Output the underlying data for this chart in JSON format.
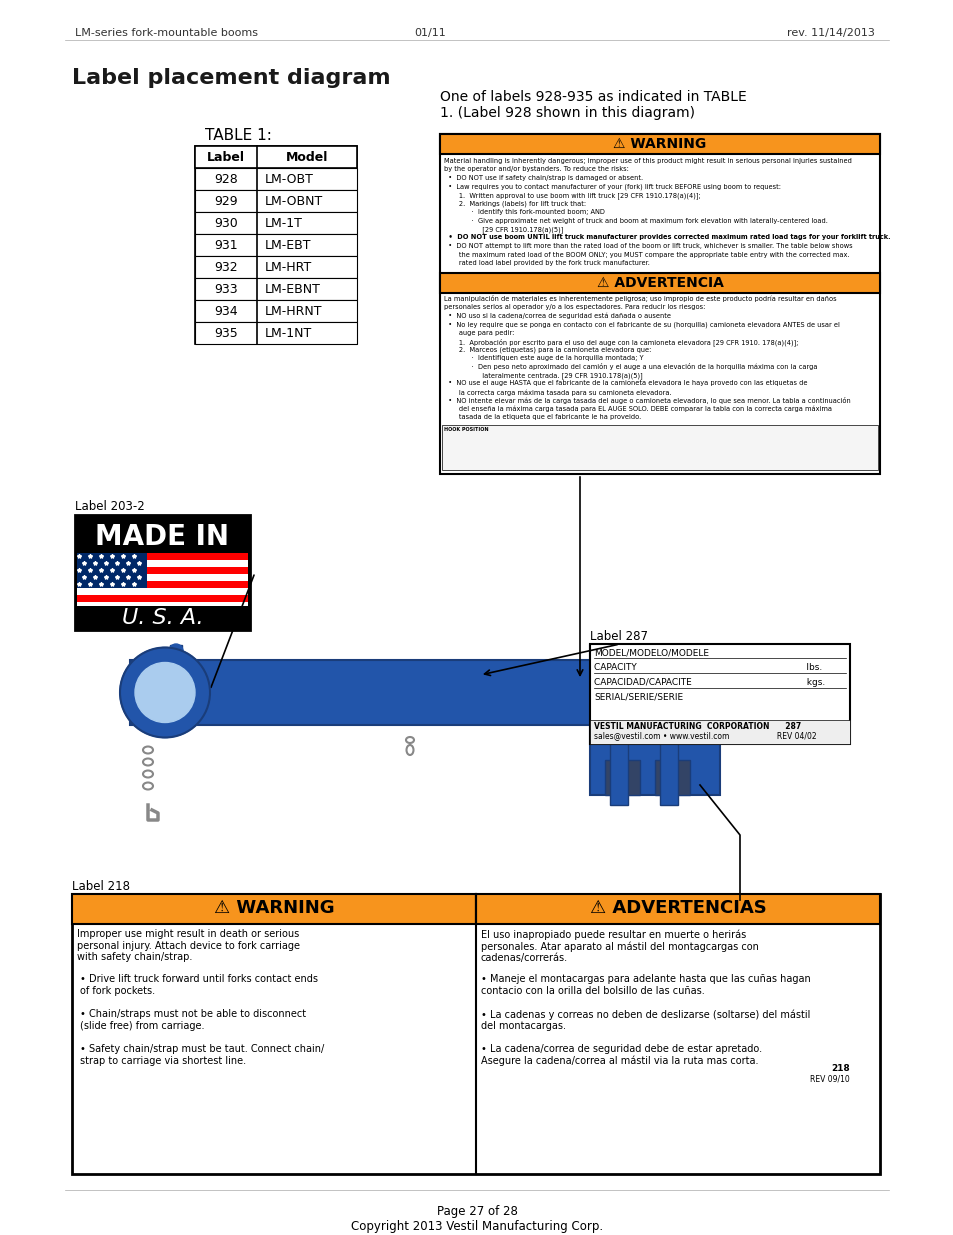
{
  "page_title": "Label placement diagram",
  "header_left": "LM-series fork-mountable booms",
  "header_center": "01/11",
  "header_right": "rev. 11/14/2013",
  "footer_line1": "Page 27 of 28",
  "footer_line2": "Copyright 2013 Vestil Manufacturing Corp.",
  "table1_title": "TABLE 1:",
  "table1_headers": [
    "Label",
    "Model"
  ],
  "table1_rows": [
    [
      "928",
      "LM-OBT"
    ],
    [
      "929",
      "LM-OBNT"
    ],
    [
      "930",
      "LM-1T"
    ],
    [
      "931",
      "LM-EBT"
    ],
    [
      "932",
      "LM-HRT"
    ],
    [
      "933",
      "LM-EBNT"
    ],
    [
      "934",
      "LM-HRNT"
    ],
    [
      "935",
      "LM-1NT"
    ]
  ],
  "callout_text": "One of labels 928-935 as indicated in TABLE\n1. (Label 928 shown in this diagram)",
  "warning_title": "WARNING",
  "warning_text1": "Material handling is inherently dangerous; improper use of this product might result in serious personal injuries sustained\nby the operator and/or bystanders. To reduce the risks:\n  •  DO NOT use if safety chain/strap is damaged or absent.\n  •  Law requires you to contact manufacturer of your (fork) lift truck BEFORE using boom to request:\n       1.  Written approval to use boom with lift truck [29 CFR 1910.178(a)(4)];\n       2.  Markings (labels) for lift truck that:\n             ·  Identify this fork-mounted boom; AND\n             ·  Give approximate net weight of truck and boom at maximum fork elevation with laterally-centered load.\n                  [29 CFR 1910.178(a)(5)]\n  •  DO NOT use boom UNTIL lift truck manufacturer provides corrected maximum rated load tags for your forklift truck.\n  •  DO NOT attempt to lift more than the rated load of the boom or lift truck, whichever is smaller. The table below shows\n       the maximum rated load of the BOOM ONLY; you MUST compare the appropriate table entry with the corrected max.\n       rated load label provided by the fork truck manufacturer.",
  "advertencia_title": "ADVERTENCIA",
  "advertencia_text": "La manipulación de materiales es inherentemente peligrosa; uso impropio de este producto podría resultar en daños\npersonales serios al operador y/o a los espectadores. Para reducir los riesgos:\n  •  NO uso si la cadena/correa de seguridad está dañada o ausente\n  •  No ley require que se ponga en contacto con el fabricante de su (horquilla) camioneta elevadora ANTES de usar el\n       auge para pedir:\n       1.  Aprobación por escrito para el uso del auge con la camioneta elevadora [29 CFR 1910. 178(a)(4)];\n       2.  Marceos (etiquetas) para la camioneta elevadora que:\n             ·  Identifiquen este auge de la horquilla montada; Y\n             ·  Den peso neto aproximado del camión y el auge a una elevación de la horquilla máxima con la carga\n                  lateralmente centrada. [29 CFR 1910.178(a)(5)]\n  •  NO use el auge HASTA que el fabricante de la camioneta elevadora le haya provedo con las etiquetas de\n       la correcta carga máxima tasada para su camioneta elevadora.\n  •  NO intente elevar más de la carga tasada del auge o camioneta elevadora, lo que sea menor. La tabla a continuación\n       del enseña la máxima carga tasada para EL AUGE SOLO. DEBE comparar la tabla con la correcta carga máxima\n       tasada de la etiqueta que el fabricante le ha proveido.",
  "label203_title": "Label 203-2",
  "made_in_text": "MADE IN",
  "usa_text": "U. S. A.",
  "label287_title": "Label 287",
  "label287_rows": [
    "MODEL/MODELO/MODELE",
    "CAPACITY                                                           lbs.",
    "CAPACIDAD/CAPACITE                                        kgs.",
    "SERIAL/SERIE/SERIE"
  ],
  "label287_footer": "VESTIL MANUFACTURING  CORPORATION      287\nsales@vestil.com • www.vestil.com                    REV 04/02",
  "label218_title": "Label 218",
  "warn218_title": "WARNING",
  "advert218_title": "ADVERTENCIAS",
  "warn218_text_en": "Improper use might result in death or serious\npersonal injury. Attach device to fork carriage\nwith safety chain/strap.",
  "warn218_bullets_en": [
    "Drive lift truck forward until forks contact ends\nof fork pockets.",
    "Chain/straps must not be able to disconnect\n(slide free) from carriage.",
    "Safety chain/strap must be taut. Connect chain/\nstrap to carriage via shortest line."
  ],
  "warn218_text_es": "El uso inapropiado puede resultar en muerte o herirás\npersonales. Atar aparato al mástil del montagcargas con\ncadenas/correrás.",
  "warn218_bullets_es": [
    "Maneje el montacargas para adelante hasta que las cuñas hagan\ncontacio con la orilla del bolsillo de las cuñas.",
    "La cadenas y correas no deben de deslizarse (soltarse) del mástil\ndel montacargas.",
    "La cadena/correa de seguridad debe de estar apretado.\nAsegure la cadena/correa al mástil via la ruta mas corta."
  ],
  "warn218_num": "218",
  "warn218_rev": "REV 09/10",
  "orange_color": "#F7941D",
  "border_color": "#000000",
  "bg_color": "#ffffff",
  "text_color_dark": "#231f20",
  "blue_color": "#2E75B6"
}
